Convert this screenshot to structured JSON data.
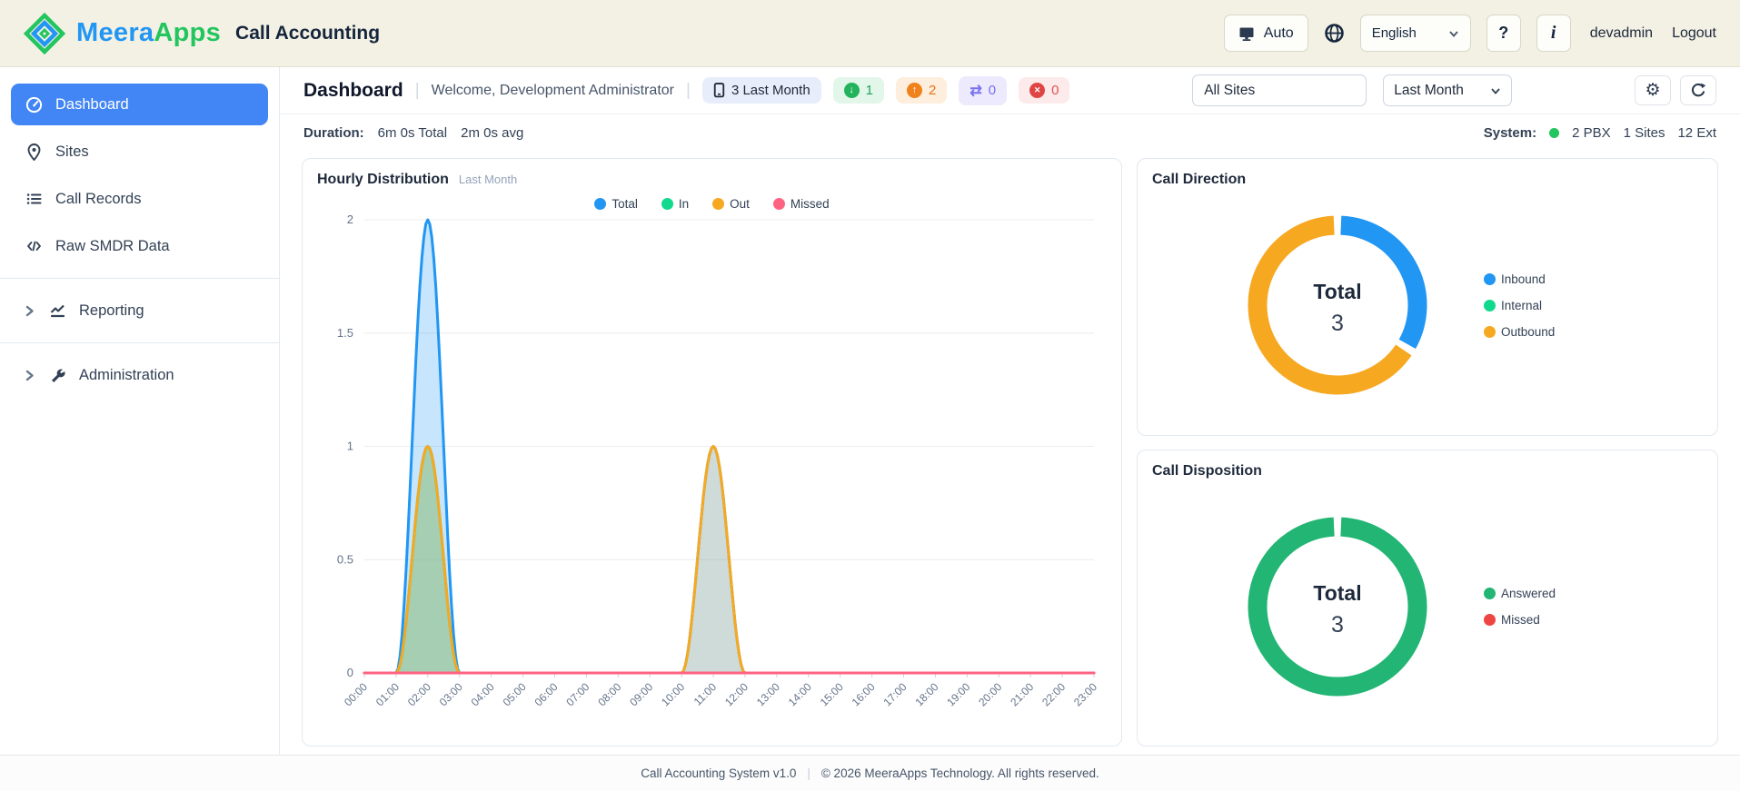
{
  "header": {
    "brand_first": "Meera",
    "brand_second": "Apps",
    "app_title": "Call Accounting",
    "auto_label": "Auto",
    "language_selected": "English",
    "help_label": "?",
    "info_label": "i",
    "username": "devadmin",
    "logout_label": "Logout"
  },
  "sidebar": {
    "items": [
      {
        "label": "Dashboard",
        "active": true
      },
      {
        "label": "Sites",
        "active": false
      },
      {
        "label": "Call Records",
        "active": false
      },
      {
        "label": "Raw SMDR Data",
        "active": false
      },
      {
        "label": "Reporting",
        "active": false,
        "expandable": true
      },
      {
        "label": "Administration",
        "active": false,
        "expandable": true
      }
    ]
  },
  "dashboard_header": {
    "title": "Dashboard",
    "welcome": "Welcome, Development Administrator",
    "period_badge": "3 Last Month",
    "inbound_count": "1",
    "outbound_count": "2",
    "internal_count": "0",
    "missed_count": "0",
    "internal_glyph": "⇄",
    "missed_glyph": "✕",
    "in_arrow": "↓",
    "out_arrow": "↑",
    "site_filter_value": "All Sites",
    "period_selected": "Last Month"
  },
  "stats_bar": {
    "duration_label": "Duration:",
    "duration_total": "6m 0s Total",
    "duration_avg": "2m 0s avg",
    "system_label": "System:",
    "pbx": "2 PBX",
    "sites": "1 Sites",
    "extensions": "12 Ext"
  },
  "footer": {
    "version": "Call Accounting System v1.0",
    "separator": "|",
    "copyright": "© 2026 MeeraApps Technology. All rights reserved."
  },
  "colors": {
    "accent_blue": "#4285f4",
    "header_bg": "#f3f0e4",
    "total_blue": "#2196f3",
    "in_green": "#10d98e",
    "out_orange": "#f6a821",
    "missed_red": "#ff6384",
    "answered_green": "#22b573",
    "status_green": "#22c55e"
  },
  "chart_data": [
    {
      "id": "hourly_distribution",
      "type": "area",
      "title": "Hourly Distribution",
      "subtitle": "Last Month",
      "x_labels": [
        "00:00",
        "01:00",
        "02:00",
        "03:00",
        "04:00",
        "05:00",
        "06:00",
        "07:00",
        "08:00",
        "09:00",
        "10:00",
        "11:00",
        "12:00",
        "13:00",
        "14:00",
        "15:00",
        "16:00",
        "17:00",
        "18:00",
        "19:00",
        "20:00",
        "21:00",
        "22:00",
        "23:00"
      ],
      "ylim": [
        0,
        2
      ],
      "yticks": [
        0,
        0.5,
        1,
        1.5,
        2
      ],
      "legend_position": "top",
      "grid": "horizontal",
      "series": [
        {
          "name": "Total",
          "color": "#2196f3",
          "fill": "rgba(33,150,243,0.25)",
          "values": [
            0,
            0,
            2,
            0,
            0,
            0,
            0,
            0,
            0,
            0,
            0,
            1,
            0,
            0,
            0,
            0,
            0,
            0,
            0,
            0,
            0,
            0,
            0,
            0
          ]
        },
        {
          "name": "In",
          "color": "#10d98e",
          "fill": "rgba(26,175,95,0.28)",
          "values": [
            0,
            0,
            1,
            0,
            0,
            0,
            0,
            0,
            0,
            0,
            0,
            0,
            0,
            0,
            0,
            0,
            0,
            0,
            0,
            0,
            0,
            0,
            0,
            0
          ]
        },
        {
          "name": "Out",
          "color": "#f6a821",
          "fill": "rgba(246,168,33,0.16)",
          "values": [
            0,
            0,
            1,
            0,
            0,
            0,
            0,
            0,
            0,
            0,
            0,
            1,
            0,
            0,
            0,
            0,
            0,
            0,
            0,
            0,
            0,
            0,
            0,
            0
          ]
        },
        {
          "name": "Missed",
          "color": "#ff6384",
          "fill": "none",
          "values": [
            0,
            0,
            0,
            0,
            0,
            0,
            0,
            0,
            0,
            0,
            0,
            0,
            0,
            0,
            0,
            0,
            0,
            0,
            0,
            0,
            0,
            0,
            0,
            0
          ]
        }
      ]
    },
    {
      "id": "call_direction",
      "type": "donut",
      "title": "Call Direction",
      "center_label": "Total",
      "center_value": "3",
      "slices": [
        {
          "name": "Inbound",
          "color": "#2196f3",
          "value": 1
        },
        {
          "name": "Internal",
          "color": "#10d98e",
          "value": 0
        },
        {
          "name": "Outbound",
          "color": "#f6a821",
          "value": 2
        }
      ]
    },
    {
      "id": "call_disposition",
      "type": "donut",
      "title": "Call Disposition",
      "center_label": "Total",
      "center_value": "3",
      "slices": [
        {
          "name": "Answered",
          "color": "#22b573",
          "value": 3
        },
        {
          "name": "Missed",
          "color": "#ef4444",
          "value": 0
        }
      ]
    }
  ]
}
